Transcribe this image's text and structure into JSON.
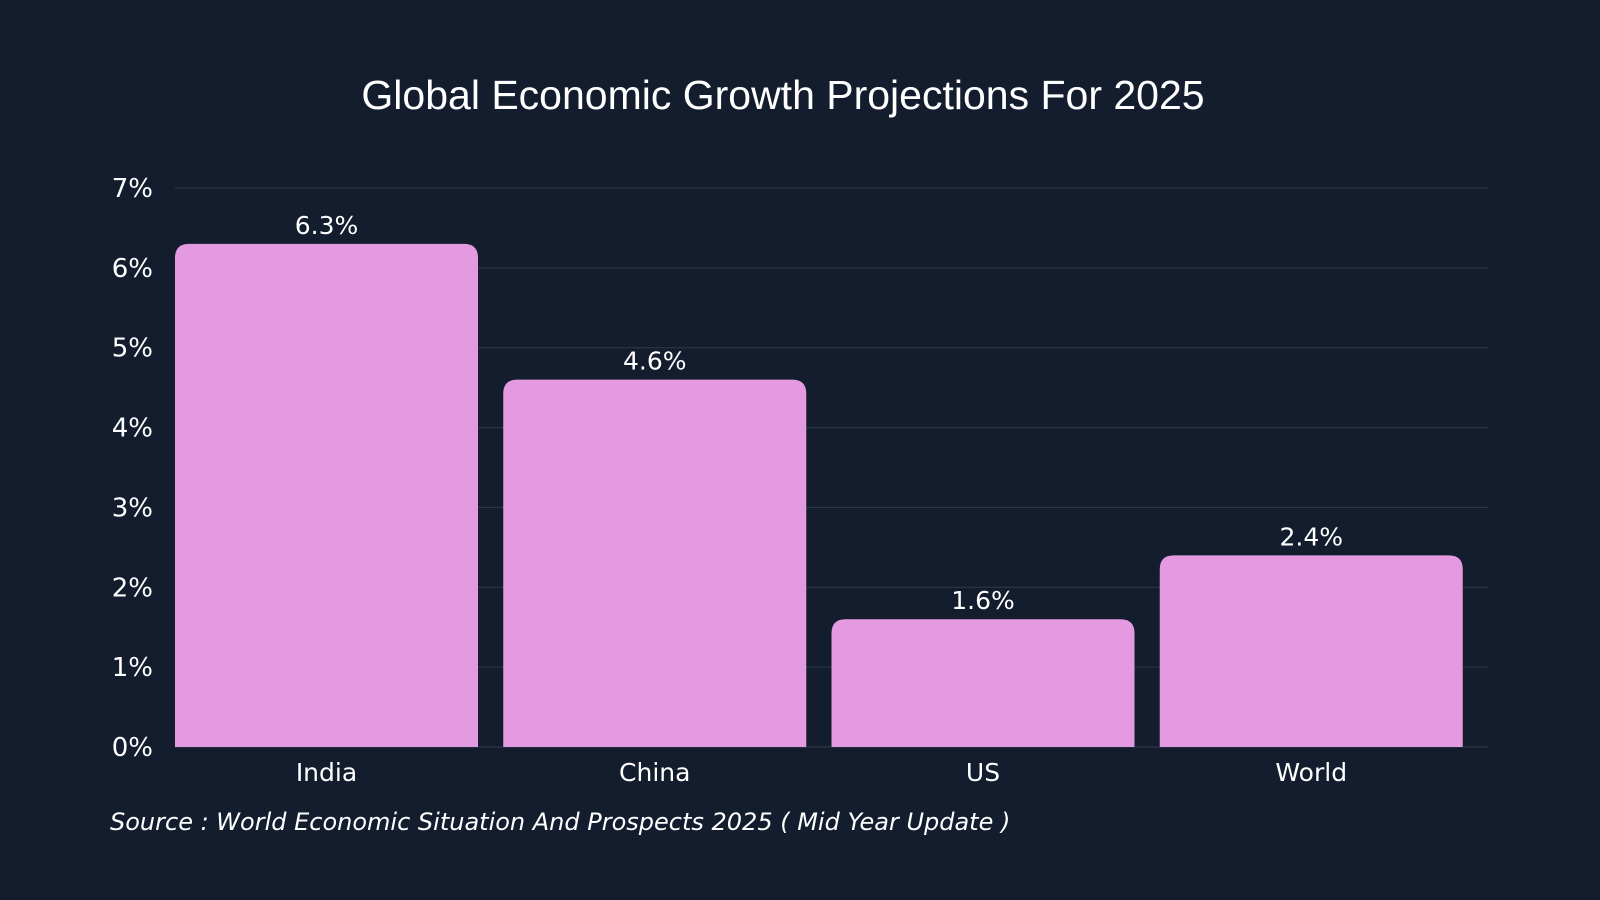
{
  "chart_data": {
    "type": "bar",
    "title": "Global Economic Growth Projections For 2025",
    "categories": [
      "India",
      "China",
      "US",
      "World"
    ],
    "values": [
      6.3,
      4.6,
      1.6,
      2.4
    ],
    "value_labels": [
      "6.3%",
      "4.6%",
      "1.6%",
      "2.4%"
    ],
    "yticks": [
      0,
      1,
      2,
      3,
      4,
      5,
      6,
      7
    ],
    "ytick_labels": [
      "0%",
      "1%",
      "2%",
      "3%",
      "4%",
      "5%",
      "6%",
      "7%"
    ],
    "ylim": [
      0,
      7
    ],
    "xlabel": "",
    "ylabel": "",
    "grid": true,
    "legend": "none",
    "source": "Source : World Economic Situation And Prospects 2025 ( Mid Year Update )",
    "colors": {
      "background": "#131d2e",
      "bar": "#e49ae0",
      "grid": "#2f3a4a",
      "text": "#ffffff"
    }
  }
}
